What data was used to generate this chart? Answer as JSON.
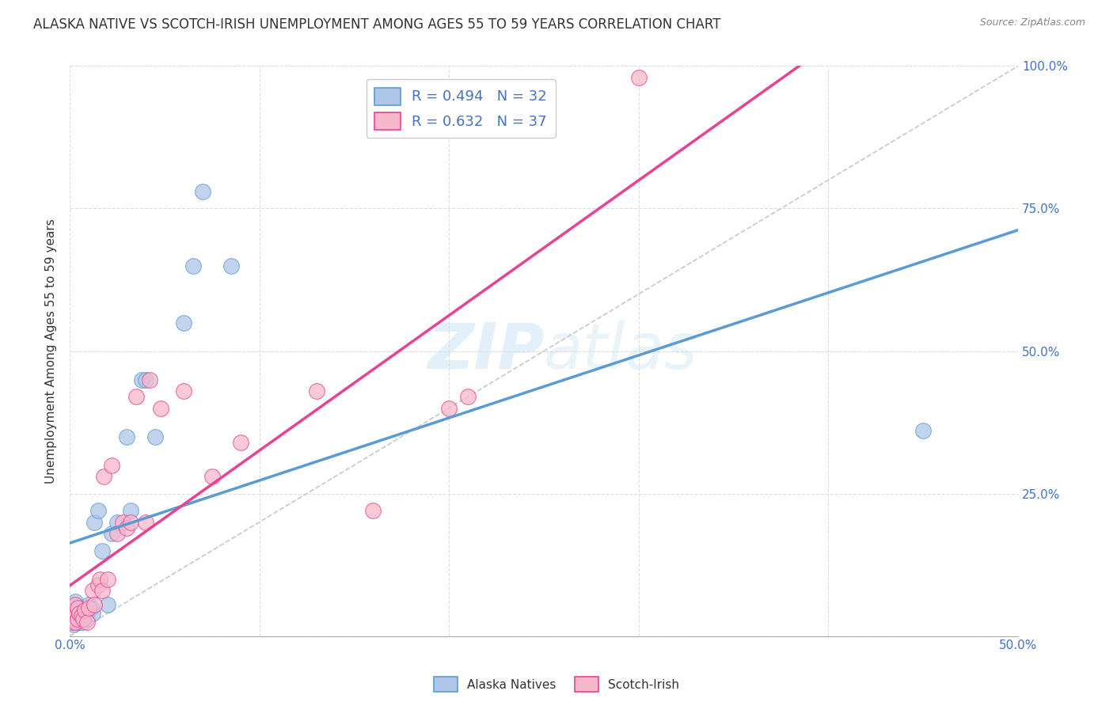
{
  "title": "ALASKA NATIVE VS SCOTCH-IRISH UNEMPLOYMENT AMONG AGES 55 TO 59 YEARS CORRELATION CHART",
  "source": "Source: ZipAtlas.com",
  "ylabel": "Unemployment Among Ages 55 to 59 years",
  "xlim": [
    0.0,
    0.5
  ],
  "ylim": [
    0.0,
    1.0
  ],
  "xticks": [
    0.0,
    0.1,
    0.2,
    0.3,
    0.4,
    0.5
  ],
  "xtick_labels": [
    "0.0%",
    "",
    "",
    "",
    "",
    "50.0%"
  ],
  "yticks": [
    0.0,
    0.25,
    0.5,
    0.75,
    1.0
  ],
  "ytick_labels_right": [
    "",
    "25.0%",
    "50.0%",
    "75.0%",
    "100.0%"
  ],
  "alaska_native_x": [
    0.001,
    0.002,
    0.002,
    0.003,
    0.003,
    0.004,
    0.004,
    0.005,
    0.005,
    0.006,
    0.007,
    0.008,
    0.009,
    0.01,
    0.011,
    0.012,
    0.013,
    0.015,
    0.017,
    0.02,
    0.022,
    0.025,
    0.03,
    0.032,
    0.038,
    0.04,
    0.045,
    0.06,
    0.065,
    0.07,
    0.085,
    0.45
  ],
  "alaska_native_y": [
    0.03,
    0.02,
    0.055,
    0.04,
    0.06,
    0.035,
    0.05,
    0.025,
    0.045,
    0.035,
    0.025,
    0.04,
    0.03,
    0.055,
    0.05,
    0.04,
    0.2,
    0.22,
    0.15,
    0.055,
    0.18,
    0.2,
    0.35,
    0.22,
    0.45,
    0.45,
    0.35,
    0.55,
    0.65,
    0.78,
    0.65,
    0.36
  ],
  "scotch_irish_x": [
    0.001,
    0.002,
    0.002,
    0.003,
    0.003,
    0.004,
    0.004,
    0.005,
    0.006,
    0.007,
    0.008,
    0.009,
    0.01,
    0.012,
    0.013,
    0.015,
    0.016,
    0.017,
    0.018,
    0.02,
    0.022,
    0.025,
    0.028,
    0.03,
    0.032,
    0.035,
    0.04,
    0.042,
    0.048,
    0.06,
    0.075,
    0.09,
    0.13,
    0.16,
    0.2,
    0.21,
    0.3
  ],
  "scotch_irish_y": [
    0.025,
    0.03,
    0.045,
    0.025,
    0.055,
    0.03,
    0.05,
    0.04,
    0.035,
    0.03,
    0.045,
    0.025,
    0.05,
    0.08,
    0.055,
    0.09,
    0.1,
    0.08,
    0.28,
    0.1,
    0.3,
    0.18,
    0.2,
    0.19,
    0.2,
    0.42,
    0.2,
    0.45,
    0.4,
    0.43,
    0.28,
    0.34,
    0.43,
    0.22,
    0.4,
    0.42,
    0.98
  ],
  "alaska_color": "#aec6e8",
  "scotch_irish_color": "#f7b8cc",
  "alaska_line_color": "#5b9bd5",
  "scotch_irish_line_color": "#e84393",
  "diagonal_color": "#c8c8c8",
  "R_alaska": 0.494,
  "N_alaska": 32,
  "R_scotch": 0.632,
  "N_scotch": 37,
  "watermark_zip": "ZIP",
  "watermark_atlas": "atlas",
  "legend_label_alaska": "Alaska Natives",
  "legend_label_scotch": "Scotch-Irish",
  "title_fontsize": 12,
  "axis_label_fontsize": 11,
  "tick_fontsize": 11,
  "legend_fontsize": 13
}
